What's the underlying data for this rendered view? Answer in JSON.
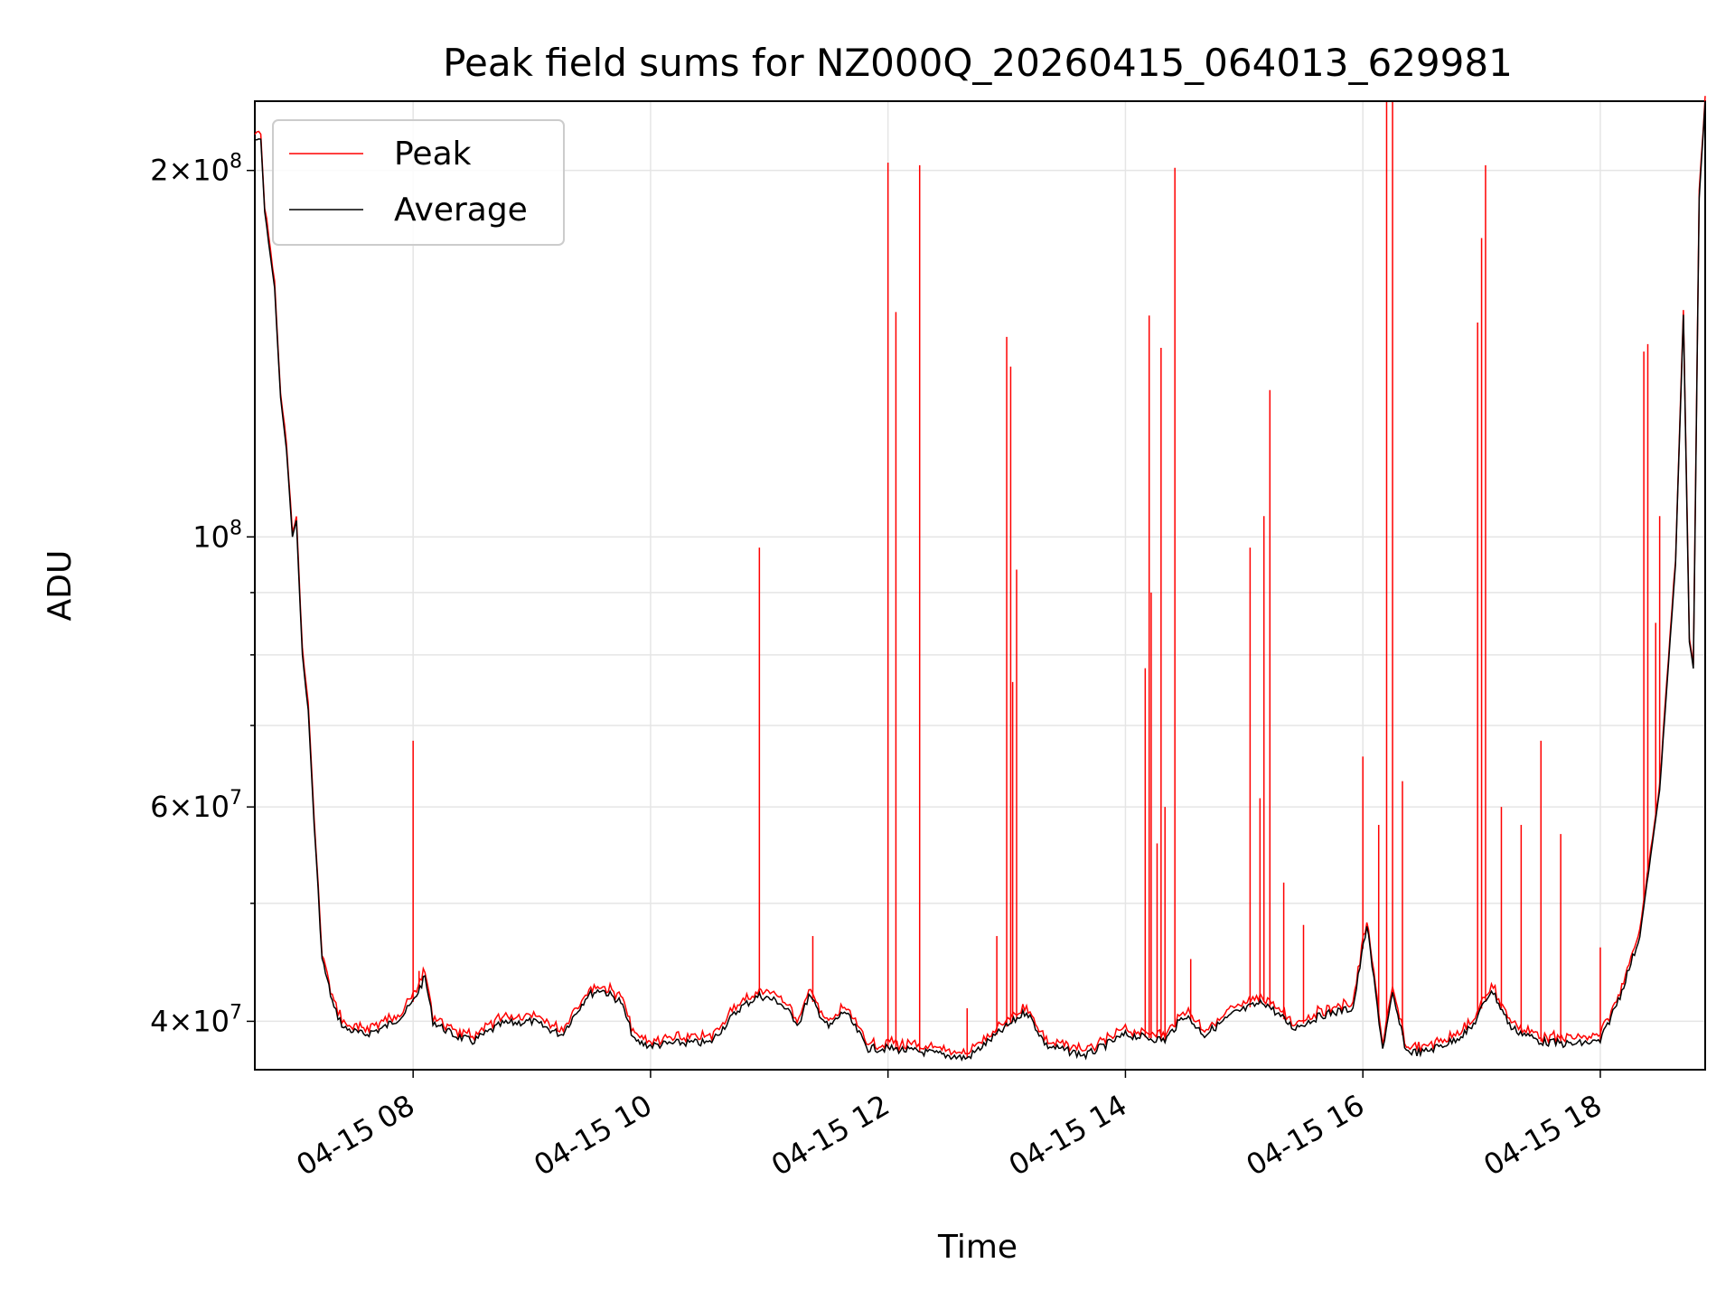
{
  "chart_data": {
    "type": "line",
    "title": "Peak field sums for NZ000Q_20260415_064013_629981",
    "xlabel": "Time",
    "ylabel": "ADU",
    "x_range": [
      "2026-04-15 06:40",
      "2026-04-15 18:53"
    ],
    "ylim": [
      36500000,
      228000000
    ],
    "yscale": "log",
    "grid": true,
    "legend_position": "upper left",
    "x_ticks": [
      "04-15 08",
      "04-15 10",
      "04-15 12",
      "04-15 14",
      "04-15 16",
      "04-15 18"
    ],
    "y_ticks": [
      {
        "value": 40000000,
        "mantissa": "4",
        "exponent": "7"
      },
      {
        "value": 60000000,
        "mantissa": "6",
        "exponent": "7"
      },
      {
        "value": 100000000,
        "mantissa": "",
        "exponent": "8"
      },
      {
        "value": 200000000,
        "mantissa": "2",
        "exponent": "8"
      }
    ],
    "series": [
      {
        "name": "Average",
        "color": "#000000",
        "points": [
          [
            "2026-04-15 06:40",
            212000000
          ],
          [
            "2026-04-15 06:43",
            212000000
          ],
          [
            "2026-04-15 06:45",
            185000000
          ],
          [
            "2026-04-15 06:50",
            160000000
          ],
          [
            "2026-04-15 06:53",
            130000000
          ],
          [
            "2026-04-15 06:56",
            118000000
          ],
          [
            "2026-04-15 06:59",
            100000000
          ],
          [
            "2026-04-15 07:01",
            103000000
          ],
          [
            "2026-04-15 07:04",
            80000000
          ],
          [
            "2026-04-15 07:07",
            72000000
          ],
          [
            "2026-04-15 07:10",
            58000000
          ],
          [
            "2026-04-15 07:14",
            45000000
          ],
          [
            "2026-04-15 07:20",
            41000000
          ],
          [
            "2026-04-15 07:25",
            39500000
          ],
          [
            "2026-04-15 07:35",
            39000000
          ],
          [
            "2026-04-15 07:45",
            39500000
          ],
          [
            "2026-04-15 07:55",
            40500000
          ],
          [
            "2026-04-15 08:00",
            41500000
          ],
          [
            "2026-04-15 08:06",
            43500000
          ],
          [
            "2026-04-15 08:10",
            40000000
          ],
          [
            "2026-04-15 08:20",
            39000000
          ],
          [
            "2026-04-15 08:30",
            38500000
          ],
          [
            "2026-04-15 08:45",
            39800000
          ],
          [
            "2026-04-15 09:00",
            40000000
          ],
          [
            "2026-04-15 09:15",
            39000000
          ],
          [
            "2026-04-15 09:28",
            42000000
          ],
          [
            "2026-04-15 09:35",
            42500000
          ],
          [
            "2026-04-15 09:45",
            41500000
          ],
          [
            "2026-04-15 09:52",
            38500000
          ],
          [
            "2026-04-15 10:00",
            38200000
          ],
          [
            "2026-04-15 10:15",
            38400000
          ],
          [
            "2026-04-15 10:30",
            38400000
          ],
          [
            "2026-04-15 10:45",
            41000000
          ],
          [
            "2026-04-15 10:55",
            42000000
          ],
          [
            "2026-04-15 11:05",
            41500000
          ],
          [
            "2026-04-15 11:15",
            39800000
          ],
          [
            "2026-04-15 11:20",
            42000000
          ],
          [
            "2026-04-15 11:30",
            39500000
          ],
          [
            "2026-04-15 11:38",
            40800000
          ],
          [
            "2026-04-15 11:50",
            38000000
          ],
          [
            "2026-04-15 12:00",
            38000000
          ],
          [
            "2026-04-15 12:20",
            37700000
          ],
          [
            "2026-04-15 12:40",
            37300000
          ],
          [
            "2026-04-15 12:55",
            39000000
          ],
          [
            "2026-04-15 13:10",
            40800000
          ],
          [
            "2026-04-15 13:20",
            38200000
          ],
          [
            "2026-04-15 13:40",
            37500000
          ],
          [
            "2026-04-15 14:00",
            39000000
          ],
          [
            "2026-04-15 14:20",
            38600000
          ],
          [
            "2026-04-15 14:30",
            40500000
          ],
          [
            "2026-04-15 14:40",
            39000000
          ],
          [
            "2026-04-15 14:55",
            40600000
          ],
          [
            "2026-04-15 15:10",
            41500000
          ],
          [
            "2026-04-15 15:25",
            39500000
          ],
          [
            "2026-04-15 15:40",
            40500000
          ],
          [
            "2026-04-15 15:55",
            41000000
          ],
          [
            "2026-04-15 16:02",
            48000000
          ],
          [
            "2026-04-15 16:10",
            38000000
          ],
          [
            "2026-04-15 16:15",
            42000000
          ],
          [
            "2026-04-15 16:22",
            37800000
          ],
          [
            "2026-04-15 16:30",
            37700000
          ],
          [
            "2026-04-15 16:45",
            38500000
          ],
          [
            "2026-04-15 16:55",
            39500000
          ],
          [
            "2026-04-15 17:05",
            42500000
          ],
          [
            "2026-04-15 17:15",
            39500000
          ],
          [
            "2026-04-15 17:30",
            38500000
          ],
          [
            "2026-04-15 17:45",
            38300000
          ],
          [
            "2026-04-15 18:00",
            38500000
          ],
          [
            "2026-04-15 18:10",
            42000000
          ],
          [
            "2026-04-15 18:20",
            47000000
          ],
          [
            "2026-04-15 18:30",
            62000000
          ],
          [
            "2026-04-15 18:38",
            95000000
          ],
          [
            "2026-04-15 18:42",
            152000000
          ],
          [
            "2026-04-15 18:45",
            82000000
          ],
          [
            "2026-04-15 18:47",
            78000000
          ],
          [
            "2026-04-15 18:50",
            190000000
          ],
          [
            "2026-04-15 18:53",
            228000000
          ]
        ]
      },
      {
        "name": "Peak",
        "color": "#ff0000",
        "spikes": [
          [
            "2026-04-15 08:00",
            68000000
          ],
          [
            "2026-04-15 08:03",
            44000000
          ],
          [
            "2026-04-15 10:55",
            98000000
          ],
          [
            "2026-04-15 11:22",
            47000000
          ],
          [
            "2026-04-15 12:00",
            203000000
          ],
          [
            "2026-04-15 12:04",
            153000000
          ],
          [
            "2026-04-15 12:16",
            202000000
          ],
          [
            "2026-04-15 12:40",
            41000000
          ],
          [
            "2026-04-15 12:55",
            47000000
          ],
          [
            "2026-04-15 13:00",
            146000000
          ],
          [
            "2026-04-15 13:02",
            138000000
          ],
          [
            "2026-04-15 13:03",
            76000000
          ],
          [
            "2026-04-15 13:05",
            94000000
          ],
          [
            "2026-04-15 14:10",
            78000000
          ],
          [
            "2026-04-15 14:12",
            152000000
          ],
          [
            "2026-04-15 14:13",
            90000000
          ],
          [
            "2026-04-15 14:16",
            56000000
          ],
          [
            "2026-04-15 14:18",
            143000000
          ],
          [
            "2026-04-15 14:20",
            60000000
          ],
          [
            "2026-04-15 14:25",
            201000000
          ],
          [
            "2026-04-15 14:33",
            45000000
          ],
          [
            "2026-04-15 15:03",
            98000000
          ],
          [
            "2026-04-15 15:08",
            61000000
          ],
          [
            "2026-04-15 15:10",
            104000000
          ],
          [
            "2026-04-15 15:13",
            132000000
          ],
          [
            "2026-04-15 15:20",
            52000000
          ],
          [
            "2026-04-15 15:30",
            48000000
          ],
          [
            "2026-04-15 16:00",
            66000000
          ],
          [
            "2026-04-15 16:08",
            58000000
          ],
          [
            "2026-04-15 16:12",
            228000000
          ],
          [
            "2026-04-15 16:15",
            228000000
          ],
          [
            "2026-04-15 16:20",
            63000000
          ],
          [
            "2026-04-15 16:58",
            150000000
          ],
          [
            "2026-04-15 17:00",
            176000000
          ],
          [
            "2026-04-15 17:02",
            202000000
          ],
          [
            "2026-04-15 17:10",
            60000000
          ],
          [
            "2026-04-15 17:20",
            58000000
          ],
          [
            "2026-04-15 17:30",
            68000000
          ],
          [
            "2026-04-15 17:40",
            57000000
          ],
          [
            "2026-04-15 18:00",
            46000000
          ],
          [
            "2026-04-15 18:22",
            142000000
          ],
          [
            "2026-04-15 18:24",
            144000000
          ],
          [
            "2026-04-15 18:28",
            85000000
          ],
          [
            "2026-04-15 18:30",
            104000000
          ]
        ]
      }
    ]
  }
}
